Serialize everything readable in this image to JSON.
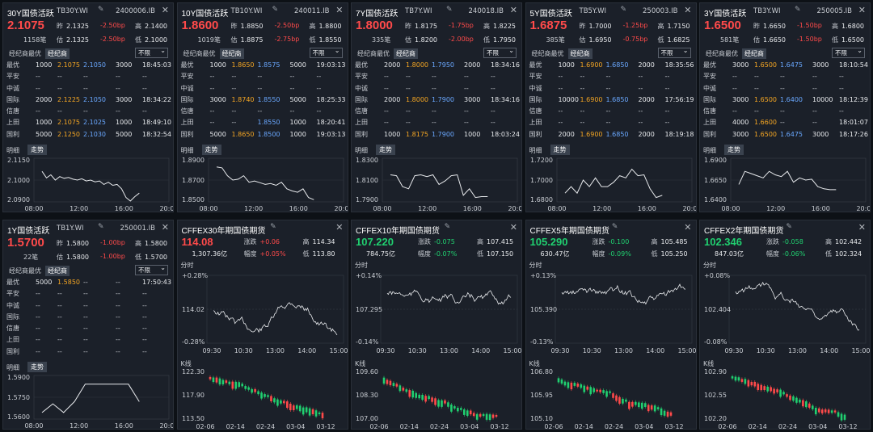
{
  "bond_panels": [
    {
      "title": "30Y国债活跃",
      "symbol": "TB30Y.WI",
      "code": "2400006.IB",
      "price": "2.1075",
      "volume": "1158笔",
      "prev_label": "昨",
      "prev": "2.1325",
      "prev_chg": "-2.50bp",
      "high_label": "高",
      "high": "2.1400",
      "est_label": "估",
      "est": "2.1325",
      "est_chg": "-2.50bp",
      "low_label": "低",
      "low": "2.1000",
      "rows": [
        [
          "最优",
          "1000",
          "2.1075",
          "2.1050",
          "3000",
          "18:45:03"
        ],
        [
          "平安",
          "--",
          "--",
          "--",
          "--",
          "--"
        ],
        [
          "中诚",
          "--",
          "--",
          "--",
          "--",
          "--"
        ],
        [
          "国际",
          "2000",
          "2.1225",
          "2.1050",
          "3000",
          "18:34:22"
        ],
        [
          "信唐",
          "--",
          "--",
          "--",
          "--",
          "--"
        ],
        [
          "上田",
          "1000",
          "2.1075",
          "2.1025",
          "1000",
          "18:49:10"
        ],
        [
          "国利",
          "5000",
          "2.1250",
          "2.1030",
          "5000",
          "18:32:54"
        ]
      ],
      "y_ticks": [
        "2.1150",
        "2.1000",
        "2.0900"
      ],
      "x_ticks": [
        "08:00",
        "12:00",
        "16:00",
        "20:00"
      ],
      "series": [
        0.7,
        0.55,
        0.62,
        0.5,
        0.58,
        0.54,
        0.56,
        0.52,
        0.5,
        0.53,
        0.48,
        0.5,
        0.46,
        0.48,
        0.4,
        0.45,
        0.38,
        0.4,
        0.3,
        0.1,
        0.02,
        0.12,
        0.2
      ]
    },
    {
      "title": "10Y国债活跃",
      "symbol": "TB10Y.WI",
      "code": "240011.IB",
      "price": "1.8600",
      "volume": "1019笔",
      "prev_label": "昨",
      "prev": "1.8850",
      "prev_chg": "-2.50bp",
      "high_label": "高",
      "high": "1.8800",
      "est_label": "估",
      "est": "1.8875",
      "est_chg": "-2.75bp",
      "low_label": "低",
      "low": "1.8550",
      "rows": [
        [
          "最优",
          "1000",
          "1.8650",
          "1.8575",
          "5000",
          "19:03:13"
        ],
        [
          "平安",
          "--",
          "--",
          "--",
          "--",
          "--"
        ],
        [
          "中诚",
          "--",
          "--",
          "--",
          "--",
          "--"
        ],
        [
          "国际",
          "3000",
          "1.8740",
          "1.8550",
          "5000",
          "18:25:33"
        ],
        [
          "信唐",
          "--",
          "--",
          "--",
          "--",
          "--"
        ],
        [
          "上田",
          "--",
          "--",
          "1.8550",
          "1000",
          "18:20:41"
        ],
        [
          "国利",
          "5000",
          "1.8650",
          "1.8500",
          "1000",
          "19:03:13"
        ]
      ],
      "y_ticks": [
        "1.8900",
        "1.8700",
        "1.8500"
      ],
      "x_ticks": [
        "08:00",
        "12:00",
        "16:00",
        "20:00"
      ],
      "series": [
        0.8,
        0.78,
        0.6,
        0.5,
        0.52,
        0.6,
        0.45,
        0.48,
        0.44,
        0.4,
        0.42,
        0.38,
        0.45,
        0.3,
        0.25,
        0.22,
        0.3,
        0.1,
        0.05
      ]
    },
    {
      "title": "7Y国债活跃",
      "symbol": "TB7Y.WI",
      "code": "240018.IB",
      "price": "1.8000",
      "volume": "335笔",
      "prev_label": "昨",
      "prev": "1.8175",
      "prev_chg": "-1.75bp",
      "high_label": "高",
      "high": "1.8225",
      "est_label": "估",
      "est": "1.8200",
      "est_chg": "-2.00bp",
      "low_label": "低",
      "low": "1.7950",
      "rows": [
        [
          "最优",
          "2000",
          "1.8000",
          "1.7950",
          "2000",
          "18:34:16"
        ],
        [
          "平安",
          "--",
          "--",
          "--",
          "--",
          "--"
        ],
        [
          "中诚",
          "--",
          "--",
          "--",
          "--",
          "--"
        ],
        [
          "国际",
          "2000",
          "1.8000",
          "1.7900",
          "3000",
          "18:34:16"
        ],
        [
          "信唐",
          "--",
          "--",
          "--",
          "--",
          "--"
        ],
        [
          "上田",
          "--",
          "--",
          "--",
          "--",
          "--"
        ],
        [
          "国利",
          "1000",
          "1.8175",
          "1.7900",
          "1000",
          "18:03:24"
        ]
      ],
      "y_ticks": [
        "1.8300",
        "1.8100",
        "1.7900"
      ],
      "x_ticks": [
        "08:00",
        "12:00",
        "16:00",
        "20:00"
      ],
      "series": [
        0.62,
        0.6,
        0.35,
        0.3,
        0.6,
        0.62,
        0.58,
        0.62,
        0.4,
        0.48,
        0.6,
        0.62,
        0.15,
        0.3,
        0.1,
        0.12,
        0.12
      ]
    },
    {
      "title": "5Y国债活跃",
      "symbol": "TB5Y.WI",
      "code": "250003.IB",
      "price": "1.6875",
      "volume": "385笔",
      "prev_label": "昨",
      "prev": "1.7000",
      "prev_chg": "-1.25bp",
      "high_label": "高",
      "high": "1.7150",
      "est_label": "估",
      "est": "1.6950",
      "est_chg": "-0.75bp",
      "low_label": "低",
      "low": "1.6825",
      "rows": [
        [
          "最优",
          "1000",
          "1.6900",
          "1.6850",
          "2000",
          "18:35:56"
        ],
        [
          "平安",
          "--",
          "--",
          "--",
          "--",
          "--"
        ],
        [
          "中诚",
          "--",
          "--",
          "--",
          "--",
          "--"
        ],
        [
          "国际",
          "10000",
          "1.6900",
          "1.6850",
          "2000",
          "17:56:19"
        ],
        [
          "信唐",
          "--",
          "--",
          "--",
          "--",
          "--"
        ],
        [
          "上田",
          "--",
          "--",
          "--",
          "--",
          "--"
        ],
        [
          "国利",
          "2000",
          "1.6900",
          "1.6850",
          "2000",
          "18:19:18"
        ]
      ],
      "y_ticks": [
        "1.7200",
        "1.7000",
        "1.6800"
      ],
      "x_ticks": [
        "08:00",
        "12:00",
        "16:00",
        "20:00"
      ],
      "series": [
        0.2,
        0.35,
        0.2,
        0.5,
        0.35,
        0.55,
        0.35,
        0.35,
        0.45,
        0.6,
        0.55,
        0.75,
        0.6,
        0.62,
        0.3,
        0.1,
        0.15
      ]
    },
    {
      "title": "3Y国债活跃",
      "symbol": "TB3Y.WI",
      "code": "250005.IB",
      "price": "1.6500",
      "volume": "581笔",
      "prev_label": "昨",
      "prev": "1.6650",
      "prev_chg": "-1.50bp",
      "high_label": "高",
      "high": "1.6800",
      "est_label": "估",
      "est": "1.6650",
      "est_chg": "-1.50bp",
      "low_label": "低",
      "low": "1.6500",
      "rows": [
        [
          "最优",
          "3000",
          "1.6500",
          "1.6475",
          "3000",
          "18:10:54"
        ],
        [
          "平安",
          "--",
          "--",
          "--",
          "--",
          "--"
        ],
        [
          "中诚",
          "--",
          "--",
          "--",
          "--",
          "--"
        ],
        [
          "国际",
          "3000",
          "1.6500",
          "1.6400",
          "10000",
          "18:12:39"
        ],
        [
          "信唐",
          "--",
          "--",
          "--",
          "--",
          "--"
        ],
        [
          "上田",
          "4000",
          "1.6600",
          "--",
          "--",
          "18:01:07"
        ],
        [
          "国利",
          "3000",
          "1.6500",
          "1.6475",
          "3000",
          "18:17:26"
        ]
      ],
      "y_ticks": [
        "1.6900",
        "1.6650",
        "1.6400"
      ],
      "x_ticks": [
        "08:00",
        "12:00",
        "16:00",
        "20:00"
      ],
      "series": [
        0.4,
        0.7,
        0.65,
        0.6,
        0.55,
        0.7,
        0.62,
        0.58,
        0.7,
        0.45,
        0.55,
        0.5,
        0.52,
        0.35,
        0.3,
        0.28,
        0.28
      ]
    },
    {
      "title": "1Y国债活跃",
      "symbol": "TB1Y.WI",
      "code": "250001.IB",
      "price": "1.5700",
      "volume": "22笔",
      "prev_label": "昨",
      "prev": "1.5800",
      "prev_chg": "-1.00bp",
      "high_label": "高",
      "high": "1.5800",
      "est_label": "估",
      "est": "1.5800",
      "est_chg": "-1.00bp",
      "low_label": "低",
      "low": "1.5700",
      "rows": [
        [
          "最优",
          "5000",
          "1.5850",
          "--",
          "--",
          "17:50:43"
        ],
        [
          "平安",
          "--",
          "--",
          "--",
          "--",
          "--"
        ],
        [
          "中诚",
          "--",
          "--",
          "--",
          "--",
          "--"
        ],
        [
          "国际",
          "--",
          "--",
          "--",
          "--",
          "--"
        ],
        [
          "信唐",
          "--",
          "--",
          "--",
          "--",
          "--"
        ],
        [
          "上田",
          "--",
          "--",
          "--",
          "--",
          "--"
        ],
        [
          "国利",
          "--",
          "--",
          "--",
          "--",
          "--"
        ]
      ],
      "y_ticks": [
        "1.5900",
        "1.5750",
        "1.5600"
      ],
      "x_ticks": [
        "08:00",
        "12:00",
        "16:00",
        "20:00"
      ],
      "series": [
        0.15,
        0.35,
        0.15,
        0.4,
        0.8,
        0.8,
        0.8,
        0.8,
        0.8,
        0.4
      ]
    }
  ],
  "futures_panels": [
    {
      "title": "CFFEX30年期国债期货",
      "price": "114.08",
      "amount": "1,307.36亿",
      "chg_label": "涨跌",
      "chg": "+0.06",
      "pct_label": "幅度",
      "pct": "+0.05%",
      "high_label": "高",
      "high": "114.34",
      "low_label": "低",
      "low": "113.80",
      "y_ticks": [
        "+0.28%",
        "114.02",
        "-0.28%"
      ],
      "x_ticks": [
        "09:30",
        "10:30",
        "13:00",
        "14:00",
        "15:00"
      ],
      "k_ticks": [
        "122.30",
        "117.90",
        "113.50"
      ],
      "kx_ticks": [
        "02-06",
        "02-14",
        "02-24",
        "03-04",
        "03-12"
      ]
    },
    {
      "title": "CFFEX10年期国债期货",
      "price": "107.220",
      "amount": "784.75亿",
      "chg_label": "涨跌",
      "chg": "-0.075",
      "pct_label": "幅度",
      "pct": "-0.07%",
      "high_label": "高",
      "high": "107.415",
      "low_label": "低",
      "low": "107.150",
      "y_ticks": [
        "+0.14%",
        "107.295",
        "-0.14%"
      ],
      "x_ticks": [
        "09:30",
        "10:30",
        "13:00",
        "14:00",
        "15:00"
      ],
      "k_ticks": [
        "109.60",
        "108.30",
        "107.00"
      ],
      "kx_ticks": [
        "02-06",
        "02-14",
        "02-24",
        "03-04",
        "03-12"
      ]
    },
    {
      "title": "CFFEX5年期国债期货",
      "price": "105.290",
      "amount": "630.47亿",
      "chg_label": "涨跌",
      "chg": "-0.100",
      "pct_label": "幅度",
      "pct": "-0.09%",
      "high_label": "高",
      "high": "105.485",
      "low_label": "低",
      "low": "105.250",
      "y_ticks": [
        "+0.13%",
        "105.390",
        "-0.13%"
      ],
      "x_ticks": [
        "09:30",
        "10:30",
        "13:00",
        "14:00",
        "15:00"
      ],
      "k_ticks": [
        "106.80",
        "105.95",
        "105.10"
      ],
      "kx_ticks": [
        "02-06",
        "02-14",
        "02-24",
        "03-04",
        "03-12"
      ]
    },
    {
      "title": "CFFEX2年期国债期货",
      "price": "102.346",
      "amount": "847.03亿",
      "chg_label": "涨跌",
      "chg": "-0.058",
      "pct_label": "幅度",
      "pct": "-0.06%",
      "high_label": "高",
      "high": "102.442",
      "low_label": "低",
      "low": "102.324",
      "y_ticks": [
        "+0.08%",
        "102.404",
        "-0.08%"
      ],
      "x_ticks": [
        "09:30",
        "10:30",
        "13:00",
        "14:00",
        "15:00"
      ],
      "k_ticks": [
        "102.90",
        "102.55",
        "102.20"
      ],
      "kx_ticks": [
        "02-06",
        "02-14",
        "02-24",
        "03-04",
        "03-12"
      ]
    }
  ],
  "labels": {
    "tab_best": "经纪商最优",
    "tab_broker": "经纪商",
    "select": "不限",
    "detail": "明细",
    "trend": "走势",
    "minute": "分时",
    "kline": "K线"
  },
  "colors": {
    "up": "#ff4a4a",
    "down": "#20d070",
    "bg": "#1b2029",
    "line": "#e8eaed"
  }
}
